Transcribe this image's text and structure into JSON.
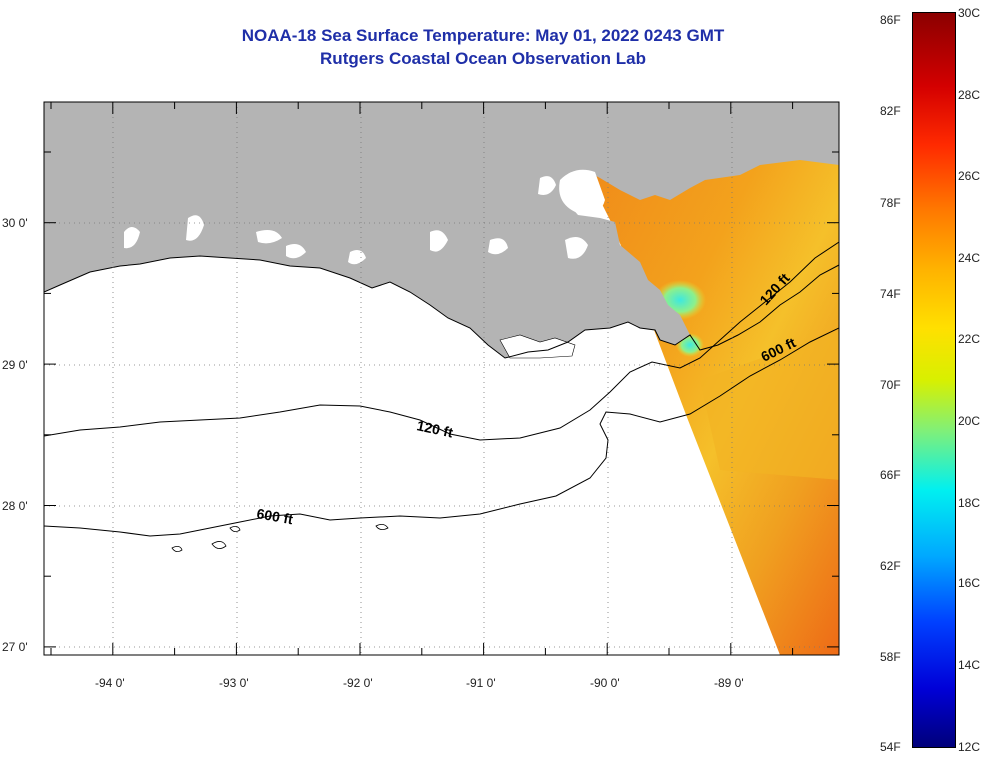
{
  "title_line1": "NOAA-18 Sea Surface Temperature:  May 01, 2022 0243 GMT",
  "title_line2": "Rutgers Coastal Ocean Observation Lab",
  "lat_labels": [
    "30 0'",
    "29 0'",
    "28 0'",
    "27 0'"
  ],
  "lon_labels": [
    "-94 0'",
    "-93 0'",
    "-92 0'",
    "-91 0'",
    "-90 0'",
    "-89 0'"
  ],
  "contour_labels": [
    "120 ft",
    "120 ft",
    "600 ft",
    "600 ft"
  ],
  "colorbar": {
    "f_labels": [
      "86F",
      "82F",
      "78F",
      "74F",
      "70F",
      "66F",
      "62F",
      "58F",
      "54F"
    ],
    "c_labels": [
      "30C",
      "28C",
      "26C",
      "24C",
      "22C",
      "20C",
      "18C",
      "16C",
      "14C",
      "12C"
    ],
    "min_f": 54,
    "max_f": 86,
    "min_c": 12,
    "max_c": 30
  },
  "colors": {
    "land": "#b4b4b4",
    "title": "#1f2fa8",
    "ocean": "#ffffff"
  }
}
